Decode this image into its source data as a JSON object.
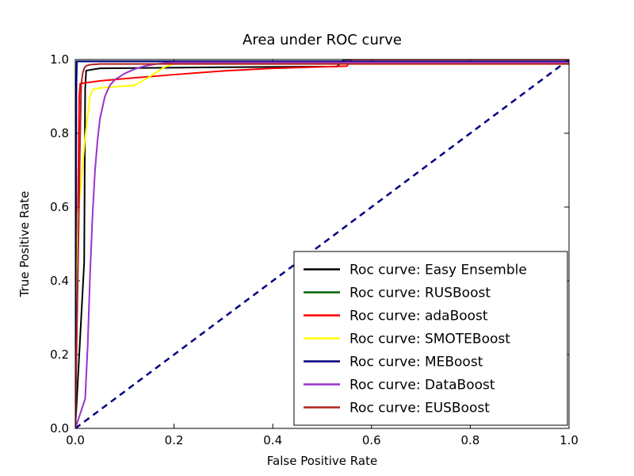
{
  "chart_data": {
    "type": "line",
    "title": "Area under ROC curve",
    "xlabel": "False Positive Rate",
    "ylabel": "True Positive Rate",
    "xlim": [
      0.0,
      1.0
    ],
    "ylim": [
      0.0,
      1.0
    ],
    "xticks": [
      0.0,
      0.2,
      0.4,
      0.6,
      0.8,
      1.0
    ],
    "yticks": [
      0.0,
      0.2,
      0.4,
      0.6,
      0.8,
      1.0
    ],
    "grid": false,
    "legend_position": "lower right",
    "legend_border_color": "#000000",
    "legend_background": "#ffffff",
    "diagonal": {
      "color": "#000080",
      "width": 2.5,
      "dash": "8 6",
      "points": [
        [
          0.0,
          0.0
        ],
        [
          1.0,
          1.0
        ]
      ]
    },
    "series": [
      {
        "name": "Roc curve: Easy Ensemble",
        "color": "#000000",
        "points": [
          [
            0,
            0
          ],
          [
            0.018,
            0.45
          ],
          [
            0.02,
            0.92
          ],
          [
            0.022,
            0.97
          ],
          [
            0.05,
            0.976
          ],
          [
            0.3,
            0.979
          ],
          [
            0.53,
            0.981
          ],
          [
            0.545,
            1.0
          ],
          [
            1.0,
            1.0
          ]
        ]
      },
      {
        "name": "Roc curve: RUSBoost",
        "color": "#006400",
        "points": [
          [
            0,
            0
          ],
          [
            0.002,
            0.9
          ],
          [
            0.003,
            0.995
          ],
          [
            1.0,
            0.995
          ]
        ]
      },
      {
        "name": "Roc curve: adaBoost",
        "color": "#ff0000",
        "points": [
          [
            0,
            0
          ],
          [
            0.008,
            0.9
          ],
          [
            0.01,
            0.935
          ],
          [
            0.05,
            0.942
          ],
          [
            0.1,
            0.948
          ],
          [
            0.2,
            0.959
          ],
          [
            0.3,
            0.969
          ],
          [
            0.4,
            0.976
          ],
          [
            0.5,
            0.98
          ],
          [
            0.55,
            0.982
          ],
          [
            0.56,
            1.0
          ],
          [
            1.0,
            1.0
          ]
        ]
      },
      {
        "name": "Roc curve: SMOTEBoost",
        "color": "#ffff00",
        "points": [
          [
            0,
            0
          ],
          [
            0.004,
            0.45
          ],
          [
            0.006,
            0.58
          ],
          [
            0.01,
            0.64
          ],
          [
            0.02,
            0.79
          ],
          [
            0.03,
            0.9
          ],
          [
            0.035,
            0.918
          ],
          [
            0.05,
            0.923
          ],
          [
            0.12,
            0.93
          ],
          [
            0.15,
            0.953
          ],
          [
            0.18,
            0.979
          ],
          [
            0.2,
            0.988
          ],
          [
            1.0,
            0.988
          ]
        ]
      },
      {
        "name": "Roc curve: MEBoost",
        "color": "#000080",
        "points": [
          [
            0,
            0
          ],
          [
            0.002,
            0.9
          ],
          [
            0.003,
            0.995
          ],
          [
            1.0,
            0.995
          ]
        ]
      },
      {
        "name": "Roc curve: DataBoost",
        "color": "#9932cc",
        "points": [
          [
            0,
            0
          ],
          [
            0.02,
            0.08
          ],
          [
            0.025,
            0.22
          ],
          [
            0.03,
            0.42
          ],
          [
            0.035,
            0.58
          ],
          [
            0.04,
            0.7
          ],
          [
            0.045,
            0.78
          ],
          [
            0.05,
            0.84
          ],
          [
            0.06,
            0.9
          ],
          [
            0.07,
            0.93
          ],
          [
            0.08,
            0.945
          ],
          [
            0.1,
            0.962
          ],
          [
            0.12,
            0.974
          ],
          [
            0.14,
            0.982
          ],
          [
            0.16,
            0.987
          ],
          [
            0.18,
            0.99
          ],
          [
            0.2,
            0.992
          ],
          [
            1.0,
            0.992
          ]
        ]
      },
      {
        "name": "Roc curve: EUSBoost",
        "color": "#b22222",
        "points": [
          [
            0,
            0
          ],
          [
            0.01,
            0.8
          ],
          [
            0.012,
            0.93
          ],
          [
            0.015,
            0.963
          ],
          [
            0.018,
            0.976
          ],
          [
            0.022,
            0.983
          ],
          [
            0.03,
            0.986
          ],
          [
            0.05,
            0.988
          ],
          [
            1.0,
            0.988
          ]
        ]
      }
    ]
  }
}
